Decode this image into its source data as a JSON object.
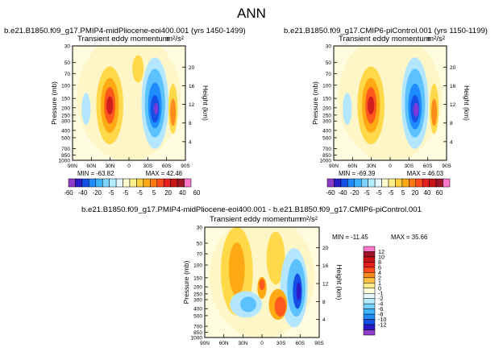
{
  "page_title": "ANN",
  "chart_data": [
    {
      "type": "contour",
      "case_title": "b.e21.B1850.f09_g17.PMIP4-midPliocene-eoi400.001  (yrs 1450-1499)",
      "title": "Transient eddy momentum",
      "units": "m²/s²",
      "ylabel": "Pressure (mb)",
      "ylabel2": "Height (km)",
      "x_ticks": [
        "90N",
        "60N",
        "30N",
        "0",
        "30S",
        "60S",
        "90S"
      ],
      "y_ticks": [
        "30",
        "50",
        "70",
        "100",
        "150",
        "200",
        "250",
        "300",
        "400",
        "500",
        "700",
        "850",
        "1000"
      ],
      "y2_ticks": [
        "20",
        "16",
        "12",
        "8",
        "4"
      ],
      "min_label": "MIN = -63.82",
      "max_label": "MAX =  42.46",
      "min": -63.82,
      "max": 42.46
    },
    {
      "type": "contour",
      "case_title": "b.e21.B1850.f09_g17.CMIP6-piControl.001  (yrs 1150-1199)",
      "title": "Transient eddy momentum",
      "units": "m²/s²",
      "ylabel": "Pressure (mb)",
      "ylabel2": "Height (km)",
      "x_ticks": [
        "90N",
        "60N",
        "30N",
        "0",
        "30S",
        "60S",
        "90S"
      ],
      "y_ticks": [
        "30",
        "50",
        "70",
        "100",
        "150",
        "200",
        "250",
        "300",
        "400",
        "500",
        "700",
        "850",
        "1000"
      ],
      "y2_ticks": [
        "20",
        "16",
        "12",
        "8",
        "4"
      ],
      "min_label": "MIN = -69.39",
      "max_label": "MAX =  46.03",
      "min": -69.39,
      "max": 46.03
    },
    {
      "type": "contour",
      "case_title": "b.e21.B1850.f09_g17.PMIP4-midPliocene-eoi400.001  -  b.e21.B1850.f09_g17.CMIP6-piControl.001",
      "title": "Transient eddy momentum",
      "units": "m²/s²",
      "ylabel": "Pressure (mb)",
      "ylabel2": "Height (km)",
      "x_ticks": [
        "90N",
        "60N",
        "30N",
        "0",
        "30S",
        "60S",
        "90S"
      ],
      "y_ticks": [
        "30",
        "50",
        "70",
        "100",
        "150",
        "200",
        "250",
        "300",
        "400",
        "500",
        "700",
        "850",
        "1000"
      ],
      "y2_ticks": [
        "20",
        "16",
        "12",
        "8",
        "4"
      ],
      "min_label": "MIN = -11.45",
      "max_label": "MAX =  35.66",
      "min": -11.45,
      "max": 35.66
    }
  ],
  "colorbar_top": {
    "labels": [
      "-60",
      "-40",
      "-20",
      "-5",
      "-5",
      "-5",
      "5",
      "20",
      "40",
      "60"
    ],
    "colors": [
      "#8c3cc8",
      "#2a1ac8",
      "#1450e6",
      "#1e8cff",
      "#3cb4ff",
      "#7cd4ff",
      "#b4ecff",
      "#e6f8ff",
      "#fffcd0",
      "#fff08c",
      "#ffd040",
      "#ffaa14",
      "#ff7a14",
      "#ff4a1e",
      "#e61e1e",
      "#c81414",
      "#a01428",
      "#ff78c8"
    ]
  },
  "colorbar_diff": {
    "labels": [
      "12",
      "10",
      "8",
      "6",
      "4",
      "2",
      "1",
      "0",
      "-1",
      "-2",
      "-4",
      "-6",
      "-8",
      "-10",
      "-12"
    ],
    "colors": [
      "#ff78c8",
      "#a01428",
      "#c81414",
      "#e61e1e",
      "#ff4a1e",
      "#ff8c1e",
      "#ffc040",
      "#ffec8c",
      "#fffcd8",
      "#e6f8ff",
      "#b4ecff",
      "#78d2ff",
      "#3cb4ff",
      "#1e8cff",
      "#1450e6",
      "#2a1ac8",
      "#8c3cc8"
    ]
  }
}
